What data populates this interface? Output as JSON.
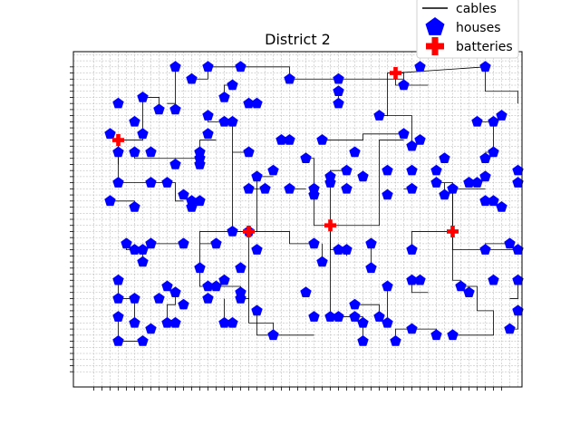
{
  "chart_data": {
    "type": "scatter",
    "title": "District 2",
    "xlabel": "",
    "ylabel": "",
    "xlim": [
      -2.5,
      52.5
    ],
    "ylim": [
      -2.5,
      52.5
    ],
    "grid": true,
    "legend_position": "top-right",
    "legend": [
      "cables",
      "houses",
      "batteries"
    ],
    "colors": {
      "houses": "#0000ff",
      "batteries": "#ff0000",
      "cables": "#000000",
      "grid": "#b0b0b0"
    },
    "batteries": [
      [
        3,
        38
      ],
      [
        19,
        23
      ],
      [
        29,
        24
      ],
      [
        37,
        49
      ],
      [
        44,
        23
      ]
    ],
    "houses": [
      [
        10,
        50
      ],
      [
        14,
        50
      ],
      [
        18,
        50
      ],
      [
        24,
        48
      ],
      [
        30,
        48
      ],
      [
        38,
        47
      ],
      [
        40,
        50
      ],
      [
        48,
        50
      ],
      [
        12,
        48
      ],
      [
        17,
        47
      ],
      [
        30,
        46
      ],
      [
        16,
        45
      ],
      [
        19,
        44
      ],
      [
        20,
        44
      ],
      [
        30,
        44
      ],
      [
        3,
        44
      ],
      [
        6,
        45
      ],
      [
        8,
        43
      ],
      [
        10,
        43
      ],
      [
        14,
        42
      ],
      [
        16,
        41
      ],
      [
        17,
        41
      ],
      [
        35,
        42
      ],
      [
        47,
        41
      ],
      [
        2,
        39
      ],
      [
        6,
        39
      ],
      [
        14,
        39
      ],
      [
        23,
        38
      ],
      [
        24,
        38
      ],
      [
        28,
        38
      ],
      [
        5,
        41
      ],
      [
        38,
        39
      ],
      [
        40,
        38
      ],
      [
        39,
        37
      ],
      [
        49,
        41
      ],
      [
        50,
        42
      ],
      [
        3,
        36
      ],
      [
        5,
        36
      ],
      [
        7,
        36
      ],
      [
        13,
        36
      ],
      [
        19,
        36
      ],
      [
        10,
        34
      ],
      [
        13,
        35
      ],
      [
        13,
        34
      ],
      [
        26,
        35
      ],
      [
        32,
        36
      ],
      [
        43,
        35
      ],
      [
        48,
        35
      ],
      [
        49,
        36
      ],
      [
        22,
        33
      ],
      [
        31,
        33
      ],
      [
        36,
        33
      ],
      [
        39,
        33
      ],
      [
        42,
        33
      ],
      [
        20,
        32
      ],
      [
        29,
        32
      ],
      [
        33,
        32
      ],
      [
        46,
        31
      ],
      [
        48,
        32
      ],
      [
        52,
        33
      ],
      [
        52,
        31
      ],
      [
        46,
        31
      ],
      [
        24,
        30
      ],
      [
        19,
        30
      ],
      [
        21,
        30
      ],
      [
        27,
        30
      ],
      [
        29,
        31
      ],
      [
        36,
        29
      ],
      [
        42,
        31
      ],
      [
        43,
        29
      ],
      [
        44,
        30
      ],
      [
        47,
        31
      ],
      [
        3,
        31
      ],
      [
        7,
        31
      ],
      [
        9,
        31
      ],
      [
        11,
        29
      ],
      [
        12,
        28
      ],
      [
        13,
        28
      ],
      [
        2,
        28
      ],
      [
        5,
        27
      ],
      [
        48,
        28
      ],
      [
        49,
        28
      ],
      [
        50,
        27
      ],
      [
        12,
        27
      ],
      [
        27,
        29
      ],
      [
        31,
        30
      ],
      [
        39,
        30
      ],
      [
        4,
        21
      ],
      [
        5,
        20
      ],
      [
        6,
        20
      ],
      [
        7,
        21
      ],
      [
        11,
        21
      ],
      [
        15,
        21
      ],
      [
        17,
        23
      ],
      [
        19,
        23
      ],
      [
        20,
        20
      ],
      [
        27,
        21
      ],
      [
        30,
        20
      ],
      [
        31,
        20
      ],
      [
        34,
        21
      ],
      [
        39,
        20
      ],
      [
        48,
        20
      ],
      [
        51,
        21
      ],
      [
        52,
        20
      ],
      [
        6,
        18
      ],
      [
        13,
        17
      ],
      [
        18,
        17
      ],
      [
        28,
        18
      ],
      [
        34,
        17
      ],
      [
        36,
        14
      ],
      [
        39,
        15
      ],
      [
        40,
        15
      ],
      [
        45,
        14
      ],
      [
        49,
        15
      ],
      [
        52,
        15
      ],
      [
        3,
        15
      ],
      [
        16,
        15
      ],
      [
        14,
        14
      ],
      [
        15,
        14
      ],
      [
        9,
        14
      ],
      [
        10,
        13
      ],
      [
        18,
        13
      ],
      [
        26,
        13
      ],
      [
        3,
        12
      ],
      [
        5,
        12
      ],
      [
        8,
        12
      ],
      [
        11,
        11
      ],
      [
        14,
        12
      ],
      [
        18,
        12
      ],
      [
        32,
        11
      ],
      [
        46,
        13
      ],
      [
        52,
        10
      ],
      [
        20,
        10
      ],
      [
        30,
        9
      ],
      [
        27,
        9
      ],
      [
        36,
        8
      ],
      [
        29,
        9
      ],
      [
        33,
        8
      ],
      [
        32,
        9
      ],
      [
        3,
        9
      ],
      [
        5,
        8
      ],
      [
        9,
        8
      ],
      [
        10,
        8
      ],
      [
        16,
        8
      ],
      [
        17,
        8
      ],
      [
        35,
        9
      ],
      [
        39,
        7
      ],
      [
        42,
        6
      ],
      [
        51,
        7
      ],
      [
        33,
        5
      ],
      [
        3,
        5
      ],
      [
        6,
        5
      ],
      [
        7,
        7
      ],
      [
        22,
        6
      ],
      [
        37,
        5
      ],
      [
        44,
        6
      ]
    ],
    "cables": [
      [
        [
          10,
          50
        ],
        [
          10,
          44
        ],
        [
          9,
          44
        ]
      ],
      [
        [
          14,
          50
        ],
        [
          24,
          50
        ],
        [
          24,
          48
        ],
        [
          38,
          48
        ],
        [
          38,
          49
        ],
        [
          37,
          49
        ]
      ],
      [
        [
          37,
          49
        ],
        [
          37,
          47
        ],
        [
          41,
          47
        ]
      ],
      [
        [
          37,
          49
        ],
        [
          48,
          50
        ]
      ],
      [
        [
          48,
          50
        ],
        [
          48,
          46
        ],
        [
          52,
          46
        ],
        [
          52,
          44
        ]
      ],
      [
        [
          37,
          49
        ],
        [
          36,
          49
        ],
        [
          36,
          42
        ],
        [
          35,
          42
        ]
      ],
      [
        [
          6,
          45
        ],
        [
          6,
          38
        ],
        [
          3,
          38
        ]
      ],
      [
        [
          3,
          38
        ],
        [
          3,
          36
        ]
      ],
      [
        [
          3,
          38
        ],
        [
          3,
          31
        ],
        [
          7,
          31
        ]
      ],
      [
        [
          5,
          36
        ],
        [
          5,
          35
        ],
        [
          13,
          35
        ],
        [
          13,
          38
        ],
        [
          15,
          38
        ]
      ],
      [
        [
          3,
          36
        ],
        [
          3,
          34
        ]
      ],
      [
        [
          7,
          31
        ],
        [
          10,
          31
        ],
        [
          10,
          28
        ],
        [
          11,
          28
        ]
      ],
      [
        [
          19,
          23
        ],
        [
          17,
          23
        ],
        [
          17,
          36
        ],
        [
          19,
          36
        ]
      ],
      [
        [
          17,
          36
        ],
        [
          17,
          41
        ]
      ],
      [
        [
          19,
          23
        ],
        [
          20,
          23
        ],
        [
          20,
          32
        ],
        [
          22,
          32
        ]
      ],
      [
        [
          29,
          24
        ],
        [
          29,
          33
        ],
        [
          31,
          33
        ]
      ],
      [
        [
          29,
          24
        ],
        [
          27,
          24
        ],
        [
          27,
          35
        ],
        [
          26,
          35
        ]
      ],
      [
        [
          29,
          24
        ],
        [
          29,
          20
        ],
        [
          30,
          20
        ]
      ],
      [
        [
          29,
          24
        ],
        [
          35,
          24
        ],
        [
          35,
          38
        ],
        [
          38,
          38
        ]
      ],
      [
        [
          28,
          38
        ],
        [
          33,
          38
        ],
        [
          33,
          39
        ],
        [
          38,
          39
        ]
      ],
      [
        [
          44,
          23
        ],
        [
          44,
          31
        ],
        [
          42,
          31
        ]
      ],
      [
        [
          44,
          23
        ],
        [
          44,
          15
        ],
        [
          45,
          15
        ]
      ],
      [
        [
          44,
          23
        ],
        [
          44,
          20
        ],
        [
          52,
          20
        ]
      ],
      [
        [
          44,
          23
        ],
        [
          39,
          23
        ],
        [
          39,
          20
        ]
      ],
      [
        [
          44,
          23
        ],
        [
          44,
          30
        ],
        [
          48,
          30
        ]
      ],
      [
        [
          47,
          41
        ],
        [
          49,
          41
        ],
        [
          49,
          36
        ],
        [
          48,
          36
        ]
      ],
      [
        [
          19,
          23
        ],
        [
          24,
          23
        ],
        [
          24,
          21
        ],
        [
          27,
          21
        ]
      ],
      [
        [
          19,
          23
        ],
        [
          13,
          23
        ],
        [
          13,
          21
        ]
      ],
      [
        [
          13,
          21
        ],
        [
          13,
          14
        ],
        [
          14,
          14
        ]
      ],
      [
        [
          13,
          21
        ],
        [
          15,
          21
        ]
      ],
      [
        [
          11,
          21
        ],
        [
          7,
          21
        ]
      ],
      [
        [
          15,
          14
        ],
        [
          18,
          14
        ],
        [
          18,
          13
        ]
      ],
      [
        [
          19,
          23
        ],
        [
          19,
          12
        ],
        [
          18,
          12
        ]
      ],
      [
        [
          19,
          12
        ],
        [
          19,
          8
        ],
        [
          22,
          8
        ],
        [
          22,
          6
        ]
      ],
      [
        [
          29,
          24
        ],
        [
          29,
          9
        ]
      ],
      [
        [
          29,
          9
        ],
        [
          33,
          9
        ],
        [
          33,
          5
        ]
      ],
      [
        [
          36,
          14
        ],
        [
          36,
          8
        ]
      ],
      [
        [
          39,
          15
        ],
        [
          39,
          13
        ],
        [
          41,
          13
        ]
      ],
      [
        [
          45,
          14
        ],
        [
          47,
          14
        ],
        [
          47,
          10
        ],
        [
          49,
          10
        ],
        [
          49,
          6
        ],
        [
          44,
          6
        ]
      ],
      [
        [
          39,
          7
        ],
        [
          37,
          7
        ],
        [
          37,
          5
        ]
      ],
      [
        [
          52,
          15
        ],
        [
          52,
          12
        ],
        [
          51,
          12
        ]
      ],
      [
        [
          3,
          15
        ],
        [
          3,
          12
        ],
        [
          5,
          12
        ]
      ],
      [
        [
          5,
          12
        ],
        [
          5,
          8
        ]
      ],
      [
        [
          3,
          9
        ],
        [
          3,
          5
        ],
        [
          6,
          5
        ]
      ],
      [
        [
          9,
          8
        ],
        [
          9,
          11
        ],
        [
          10,
          11
        ],
        [
          10,
          13
        ]
      ],
      [
        [
          16,
          8
        ],
        [
          16,
          12
        ]
      ],
      [
        [
          20,
          10
        ],
        [
          20,
          6
        ],
        [
          27,
          6
        ]
      ],
      [
        [
          30,
          9
        ],
        [
          32,
          9
        ]
      ],
      [
        [
          35,
          9
        ],
        [
          35,
          11
        ],
        [
          32,
          11
        ]
      ],
      [
        [
          39,
          7
        ],
        [
          42,
          7
        ],
        [
          42,
          6
        ]
      ],
      [
        [
          51,
          7
        ],
        [
          52,
          7
        ],
        [
          52,
          10
        ]
      ],
      [
        [
          6,
          20
        ],
        [
          6,
          18
        ]
      ],
      [
        [
          4,
          21
        ],
        [
          4,
          20
        ],
        [
          5,
          20
        ]
      ],
      [
        [
          34,
          21
        ],
        [
          34,
          17
        ]
      ],
      [
        [
          28,
          18
        ],
        [
          28,
          21
        ]
      ],
      [
        [
          48,
          20
        ],
        [
          48,
          21
        ],
        [
          51,
          21
        ]
      ],
      [
        [
          31,
          20
        ],
        [
          31,
          19
        ]
      ],
      [
        [
          43,
          29
        ],
        [
          43,
          31
        ]
      ],
      [
        [
          46,
          31
        ],
        [
          47,
          31
        ]
      ],
      [
        [
          38,
          30
        ],
        [
          39,
          30
        ]
      ],
      [
        [
          12,
          27
        ],
        [
          12,
          28
        ],
        [
          13,
          28
        ]
      ],
      [
        [
          5,
          27
        ],
        [
          5,
          28
        ],
        [
          2,
          28
        ]
      ],
      [
        [
          24,
          30
        ],
        [
          26,
          30
        ]
      ],
      [
        [
          21,
          30
        ],
        [
          19,
          30
        ]
      ],
      [
        [
          8,
          43
        ],
        [
          8,
          45
        ],
        [
          6,
          45
        ]
      ],
      [
        [
          12,
          48
        ],
        [
          14,
          48
        ],
        [
          14,
          50
        ]
      ],
      [
        [
          16,
          45
        ],
        [
          16,
          47
        ],
        [
          17,
          47
        ]
      ],
      [
        [
          19,
          44
        ],
        [
          20,
          44
        ]
      ],
      [
        [
          14,
          42
        ],
        [
          14,
          41
        ],
        [
          16,
          41
        ]
      ],
      [
        [
          35,
          42
        ],
        [
          39,
          42
        ],
        [
          39,
          37
        ]
      ],
      [
        [
          23,
          38
        ],
        [
          24,
          38
        ]
      ],
      [
        [
          30,
          46
        ],
        [
          30,
          44
        ]
      ],
      [
        [
          49,
          41
        ],
        [
          50,
          42
        ]
      ]
    ]
  }
}
